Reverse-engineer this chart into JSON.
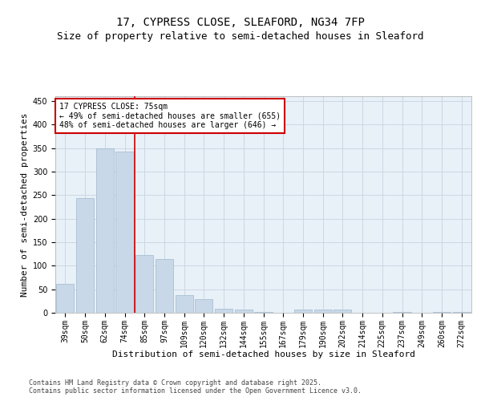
{
  "title_line1": "17, CYPRESS CLOSE, SLEAFORD, NG34 7FP",
  "title_line2": "Size of property relative to semi-detached houses in Sleaford",
  "xlabel": "Distribution of semi-detached houses by size in Sleaford",
  "ylabel": "Number of semi-detached properties",
  "categories": [
    "39sqm",
    "50sqm",
    "62sqm",
    "74sqm",
    "85sqm",
    "97sqm",
    "109sqm",
    "120sqm",
    "132sqm",
    "144sqm",
    "155sqm",
    "167sqm",
    "179sqm",
    "190sqm",
    "202sqm",
    "214sqm",
    "225sqm",
    "237sqm",
    "249sqm",
    "260sqm",
    "272sqm"
  ],
  "values": [
    62,
    243,
    350,
    343,
    122,
    115,
    38,
    29,
    9,
    7,
    2,
    0,
    7,
    6,
    6,
    0,
    0,
    2,
    0,
    1,
    2
  ],
  "bar_color": "#c8d8e8",
  "bar_edge_color": "#a0b8cc",
  "vline_x_index": 3.5,
  "vline_color": "#cc0000",
  "annotation_text": "17 CYPRESS CLOSE: 75sqm\n← 49% of semi-detached houses are smaller (655)\n48% of semi-detached houses are larger (646) →",
  "annotation_box_color": "#ffffff",
  "annotation_box_edge": "#cc0000",
  "ylim": [
    0,
    460
  ],
  "yticks": [
    0,
    50,
    100,
    150,
    200,
    250,
    300,
    350,
    400,
    450
  ],
  "grid_color": "#c8d4e0",
  "background_color": "#e8f0f8",
  "footer": "Contains HM Land Registry data © Crown copyright and database right 2025.\nContains public sector information licensed under the Open Government Licence v3.0.",
  "title_fontsize": 10,
  "subtitle_fontsize": 9,
  "axis_label_fontsize": 8,
  "tick_fontsize": 7,
  "annotation_fontsize": 7,
  "footer_fontsize": 6
}
